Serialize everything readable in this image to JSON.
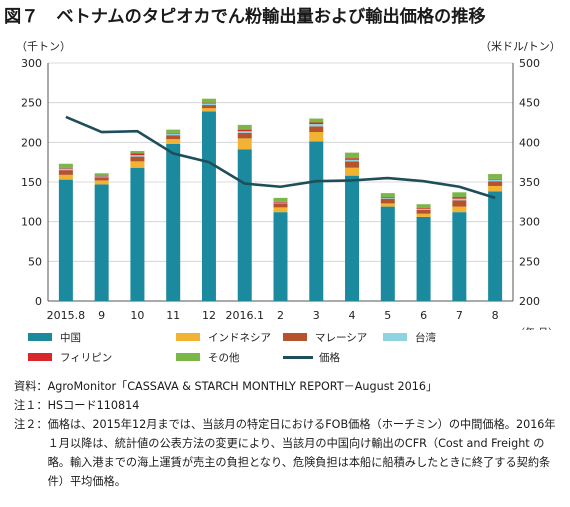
{
  "title": {
    "figure": "図７",
    "text": "ベトナムのタピオカでん粉輸出量および輸出価格の推移"
  },
  "units": {
    "left": "（千トン）",
    "right": "（米ドル/トン）",
    "x": "（年.月）"
  },
  "colors": {
    "中国": "#1c8a9e",
    "インドネシア": "#f2b234",
    "マレーシア": "#b5532a",
    "台湾": "#8fd3e3",
    "フィリピン": "#d9262b",
    "その他": "#7ab648",
    "価格": "#1f4e5b"
  },
  "chart_data": {
    "type": "bar",
    "stacked": true,
    "categories": [
      "2015.8",
      "9",
      "10",
      "11",
      "12",
      "2016.1",
      "2",
      "3",
      "4",
      "5",
      "6",
      "7",
      "8"
    ],
    "series": [
      {
        "name": "中国",
        "values": [
          153,
          147,
          168,
          198,
          239,
          191,
          112,
          201,
          158,
          119,
          106,
          112,
          138
        ]
      },
      {
        "name": "インドネシア",
        "values": [
          6,
          5,
          8,
          6,
          4,
          14,
          6,
          12,
          10,
          4,
          4,
          7,
          7
        ]
      },
      {
        "name": "マレーシア",
        "values": [
          6,
          4,
          6,
          5,
          4,
          7,
          5,
          7,
          8,
          6,
          5,
          8,
          6
        ]
      },
      {
        "name": "台湾",
        "values": [
          2,
          1,
          2,
          2,
          2,
          2,
          1,
          3,
          2,
          1,
          1,
          2,
          2
        ]
      },
      {
        "name": "フィリピン",
        "values": [
          1,
          1,
          2,
          1,
          1,
          2,
          1,
          2,
          2,
          1,
          1,
          2,
          1
        ]
      },
      {
        "name": "その他",
        "values": [
          5,
          3,
          3,
          4,
          5,
          6,
          5,
          5,
          7,
          5,
          5,
          6,
          6
        ]
      }
    ],
    "line": {
      "name": "価格",
      "axis": "right",
      "values": [
        432,
        413,
        414,
        386,
        375,
        348,
        344,
        351,
        352,
        355,
        351,
        344,
        330
      ]
    },
    "ylim_left": [
      0,
      300
    ],
    "yticks_left": [
      0,
      50,
      100,
      150,
      200,
      250,
      300
    ],
    "ylim_right": [
      200,
      500
    ],
    "yticks_right": [
      200,
      250,
      300,
      350,
      400,
      450,
      500
    ],
    "grid": true
  },
  "notes": [
    {
      "label": "資料：",
      "text": "AgroMonitor「CASSAVA & STARCH MONTHLY REPORT－August 2016」"
    },
    {
      "label": "注１：",
      "text": "HSコード110814"
    },
    {
      "label": "注２：",
      "text": "価格は、2015年12月までは、当該月の特定日におけるFOB価格（ホーチミン）の中間価格。2016年１月以降は、統計値の公表方法の変更により、当該月の中国向け輸出のCFR（Cost and Freight の略。輸入港までの海上運賃が売主の負担となり、危険負担は本船に船積みしたときに終了する契約条件）平均価格。"
    }
  ]
}
